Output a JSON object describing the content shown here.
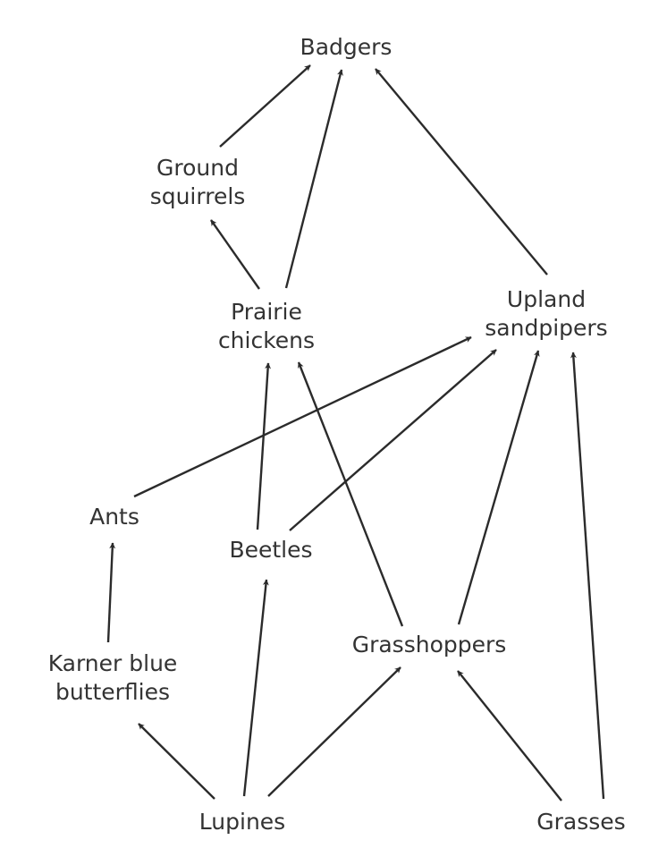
{
  "nodes": {
    "badgers": {
      "lines": [
        "Badgers"
      ]
    },
    "ground_squirrels": {
      "lines": [
        "Ground",
        "squirrels"
      ]
    },
    "prairie_chickens": {
      "lines": [
        "Prairie",
        "chickens"
      ]
    },
    "upland_sandpipers": {
      "lines": [
        "Upland",
        "sandpipers"
      ]
    },
    "ants": {
      "lines": [
        "Ants"
      ]
    },
    "beetles": {
      "lines": [
        "Beetles"
      ]
    },
    "grasshoppers": {
      "lines": [
        "Grasshoppers"
      ]
    },
    "karner_blue_butterflies": {
      "lines": [
        "Karner blue",
        "butterflies"
      ]
    },
    "lupines": {
      "lines": [
        "Lupines"
      ]
    },
    "grasses": {
      "lines": [
        "Grasses"
      ]
    }
  },
  "edges": [
    {
      "from": "ground_squirrels",
      "to": "badgers"
    },
    {
      "from": "prairie_chickens",
      "to": "badgers"
    },
    {
      "from": "upland_sandpipers",
      "to": "badgers"
    },
    {
      "from": "prairie_chickens",
      "to": "ground_squirrels"
    },
    {
      "from": "ants",
      "to": "upland_sandpipers"
    },
    {
      "from": "beetles",
      "to": "upland_sandpipers"
    },
    {
      "from": "grasshoppers",
      "to": "upland_sandpipers"
    },
    {
      "from": "grasses",
      "to": "upland_sandpipers"
    },
    {
      "from": "beetles",
      "to": "prairie_chickens"
    },
    {
      "from": "grasshoppers",
      "to": "prairie_chickens"
    },
    {
      "from": "karner_blue_butterflies",
      "to": "ants"
    },
    {
      "from": "lupines",
      "to": "karner_blue_butterflies"
    },
    {
      "from": "lupines",
      "to": "beetles"
    },
    {
      "from": "lupines",
      "to": "grasshoppers"
    },
    {
      "from": "grasses",
      "to": "grasshoppers"
    }
  ],
  "colors": {
    "arrow": "#2b2b2b",
    "text": "#333333",
    "background": "#ffffff"
  }
}
